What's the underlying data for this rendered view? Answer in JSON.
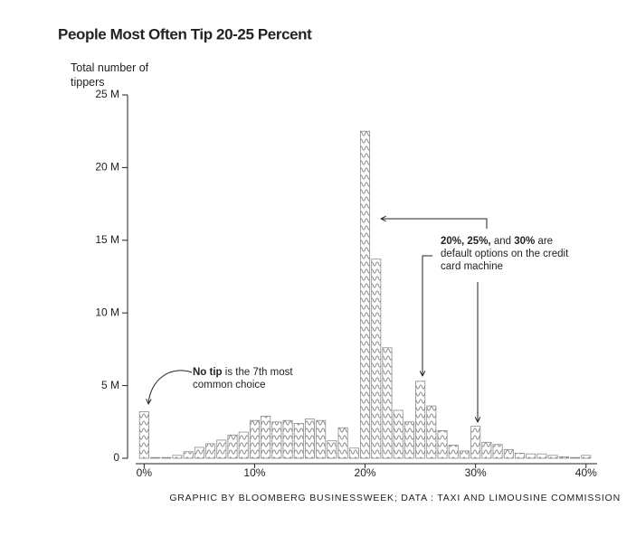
{
  "chart_data": {
    "type": "histogram",
    "title": "People Most Often Tip 20-25 Percent",
    "y_label": "Total number of tippers",
    "source": "GRAPHIC BY BLOOMBERG BUSINESSWEEK; DATA : TAXI AND LIMOUSINE COMMISSION",
    "color": "#8a8a8a",
    "bins": [
      -0.5,
      0.5,
      1.5,
      2.5,
      3.5,
      4.5,
      5.5,
      6.5,
      7.5,
      8.5,
      9.5,
      10.5,
      11.5,
      12.5,
      13.5,
      14.5,
      15.5,
      16.5,
      17.5,
      18.5,
      19.5,
      20.5,
      21.5,
      22.5,
      23.5,
      24.5,
      25.5,
      26.5,
      27.5,
      28.5,
      29.5,
      30.5,
      31.5,
      32.5,
      33.5,
      34.5,
      35.5,
      36.5,
      37.5,
      38.5,
      39.5,
      40.5
    ],
    "counts": [
      3.2,
      0.05,
      0.05,
      0.2,
      0.45,
      0.75,
      1.0,
      1.25,
      1.6,
      1.8,
      2.6,
      2.9,
      2.5,
      2.6,
      2.4,
      2.7,
      2.6,
      1.2,
      2.1,
      0.7,
      22.5,
      13.7,
      7.6,
      3.3,
      2.5,
      5.3,
      3.6,
      1.9,
      0.9,
      0.5,
      2.2,
      1.1,
      0.95,
      0.6,
      0.35,
      0.3,
      0.3,
      0.2,
      0.1,
      0.05,
      0.2
    ],
    "xlim": [
      -1.5,
      41
    ],
    "xticks": [
      {
        "value": 0,
        "label": "0%"
      },
      {
        "value": 10,
        "label": "10%"
      },
      {
        "value": 20,
        "label": "20%"
      },
      {
        "value": 30,
        "label": "30%"
      },
      {
        "value": 40,
        "label": "40%"
      }
    ],
    "ylim": [
      0,
      25
    ],
    "yticks": [
      0,
      {
        "value": 5,
        "label": "5 M"
      },
      {
        "value": 10,
        "label": "10 M"
      },
      {
        "value": 15,
        "label": "15 M"
      },
      {
        "value": 20,
        "label": "20 M"
      },
      {
        "value": 25,
        "label": "25 M"
      }
    ],
    "annotations": [
      {
        "lines": [
          [
            {
              "b": "No tip"
            },
            {
              "t": " is the 7th most"
            }
          ],
          [
            {
              "t": "common choice"
            }
          ]
        ]
      },
      {
        "lines": [
          [
            {
              "b": "20%, 25%,"
            },
            {
              "t": " and "
            },
            {
              "b": "30%"
            },
            {
              "t": " are"
            }
          ],
          [
            {
              "t": "default options on the credit"
            }
          ],
          [
            {
              "t": "card machine"
            }
          ]
        ]
      }
    ]
  }
}
